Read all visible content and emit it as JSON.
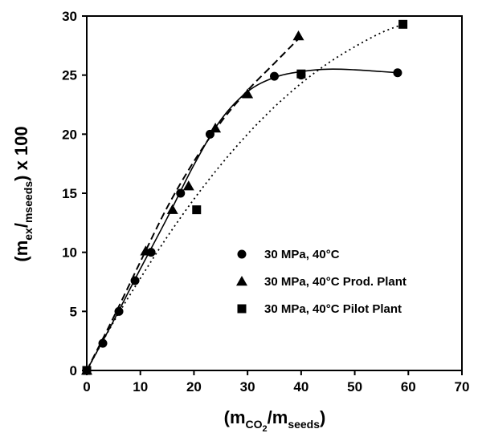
{
  "chart_data": {
    "type": "scatter",
    "title": "",
    "xlabel": {
      "prefix": "(m",
      "sub1": "CO",
      "sub1b": "2",
      "mid": "/m",
      "sub2": "seeds",
      "suffix": ")"
    },
    "ylabel": {
      "prefix": "(m",
      "sub1": "ex",
      "mid": "/",
      "sub2": "mseeds",
      "suffix": ") x 100"
    },
    "xlim": [
      0,
      70
    ],
    "ylim": [
      0,
      30
    ],
    "x_ticks": [
      0,
      10,
      20,
      30,
      40,
      50,
      60,
      70
    ],
    "y_ticks": [
      0,
      5,
      10,
      15,
      20,
      25,
      30
    ],
    "grid": false,
    "legend_position": "center-right",
    "series": [
      {
        "name": "30 MPa, 40°C",
        "marker": "circle",
        "line_style": "solid",
        "points": [
          [
            0,
            0
          ],
          [
            3,
            2.3
          ],
          [
            6,
            5
          ],
          [
            9,
            7.6
          ],
          [
            12,
            10
          ],
          [
            17.5,
            15
          ],
          [
            23,
            20
          ],
          [
            35,
            24.9
          ],
          [
            40,
            25
          ],
          [
            58,
            25.2
          ]
        ],
        "curve": [
          [
            0,
            0
          ],
          [
            5,
            4.2
          ],
          [
            10,
            8.6
          ],
          [
            15,
            12.9
          ],
          [
            20,
            17.4
          ],
          [
            25,
            21.2
          ],
          [
            30,
            23.6
          ],
          [
            35,
            24.8
          ],
          [
            40,
            25.3
          ],
          [
            45,
            25.5
          ],
          [
            50,
            25.45
          ],
          [
            55,
            25.3
          ],
          [
            58,
            25.2
          ]
        ]
      },
      {
        "name": "30 MPa, 40°C Prod. Plant",
        "marker": "triangle",
        "line_style": "dashed",
        "points": [
          [
            0,
            0
          ],
          [
            11,
            10.1
          ],
          [
            16,
            13.6
          ],
          [
            19,
            15.6
          ],
          [
            24,
            20.5
          ],
          [
            30,
            23.4
          ],
          [
            39.5,
            28.3
          ]
        ],
        "curve": [
          [
            0,
            0
          ],
          [
            5,
            4.5
          ],
          [
            10,
            9.2
          ],
          [
            15,
            13.8
          ],
          [
            20,
            17.7
          ],
          [
            25,
            21
          ],
          [
            30,
            23.7
          ],
          [
            35,
            26
          ],
          [
            40,
            28.3
          ]
        ]
      },
      {
        "name": "30 MPa, 40°C Pilot Plant",
        "marker": "square",
        "line_style": "dotted",
        "points": [
          [
            0,
            0
          ],
          [
            20.5,
            13.6
          ],
          [
            40,
            25.1
          ],
          [
            59,
            29.3
          ]
        ],
        "curve": [
          [
            0,
            0
          ],
          [
            5,
            4.1
          ],
          [
            10,
            7.8
          ],
          [
            15,
            11.3
          ],
          [
            20,
            14.5
          ],
          [
            25,
            17.4
          ],
          [
            30,
            20
          ],
          [
            35,
            22.3
          ],
          [
            40,
            24.3
          ],
          [
            45,
            26
          ],
          [
            50,
            27.4
          ],
          [
            55,
            28.6
          ],
          [
            59,
            29.3
          ]
        ]
      }
    ]
  }
}
